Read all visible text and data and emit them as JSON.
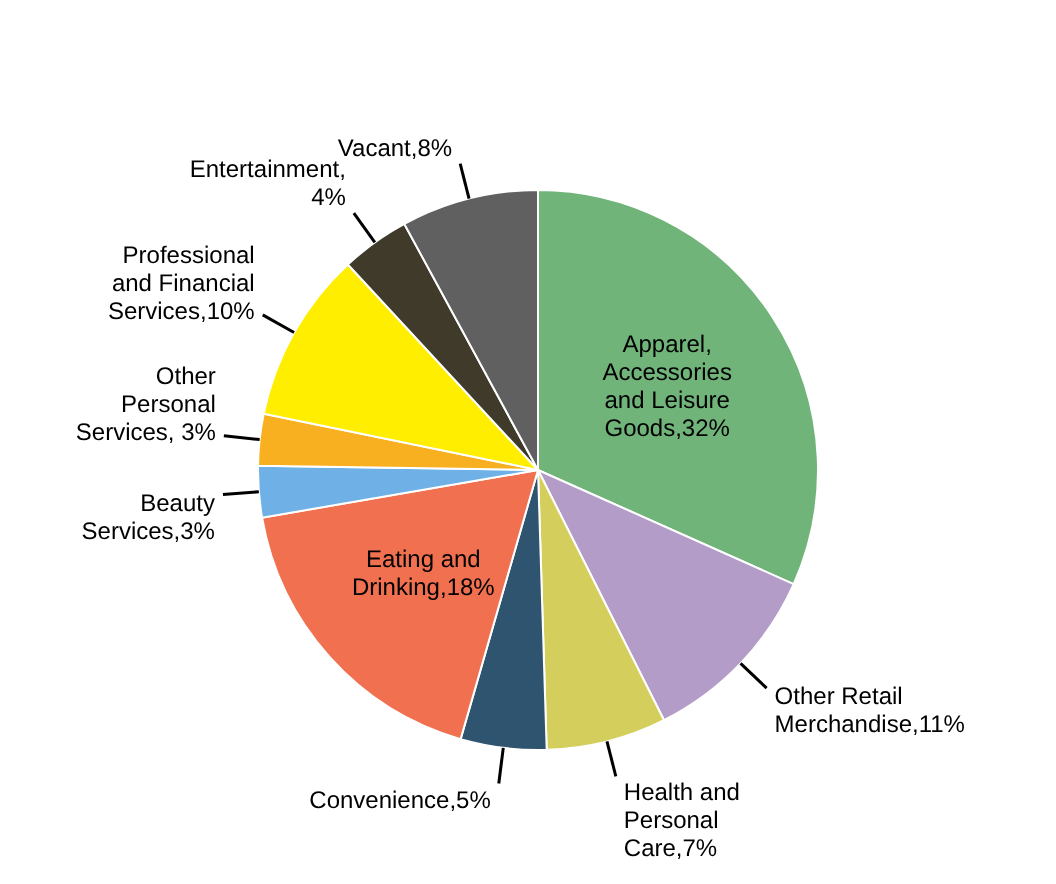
{
  "chart_data": {
    "type": "pie",
    "categories": [
      "Apparel, Accessories and Leisure Goods,32%",
      "Other Retail Merchandise,11%",
      "Health and Personal Care,7%",
      "Convenience,5%",
      "Eating and Drinking,18%",
      "Beauty Services,3%",
      "Other Personal Services, 3%",
      "Professional and Financial Services,10%",
      "Entertainment, 4%",
      "Vacant,8%"
    ],
    "values": [
      32,
      11,
      7,
      5,
      18,
      3,
      3,
      10,
      4,
      8
    ],
    "colors": [
      "#70b47a",
      "#b39cc8",
      "#d4cf5c",
      "#2f5470",
      "#f07050",
      "#6fb0e6",
      "#f8b020",
      "#ffee00",
      "#3f3a2a",
      "#606060"
    ],
    "legend": false
  }
}
